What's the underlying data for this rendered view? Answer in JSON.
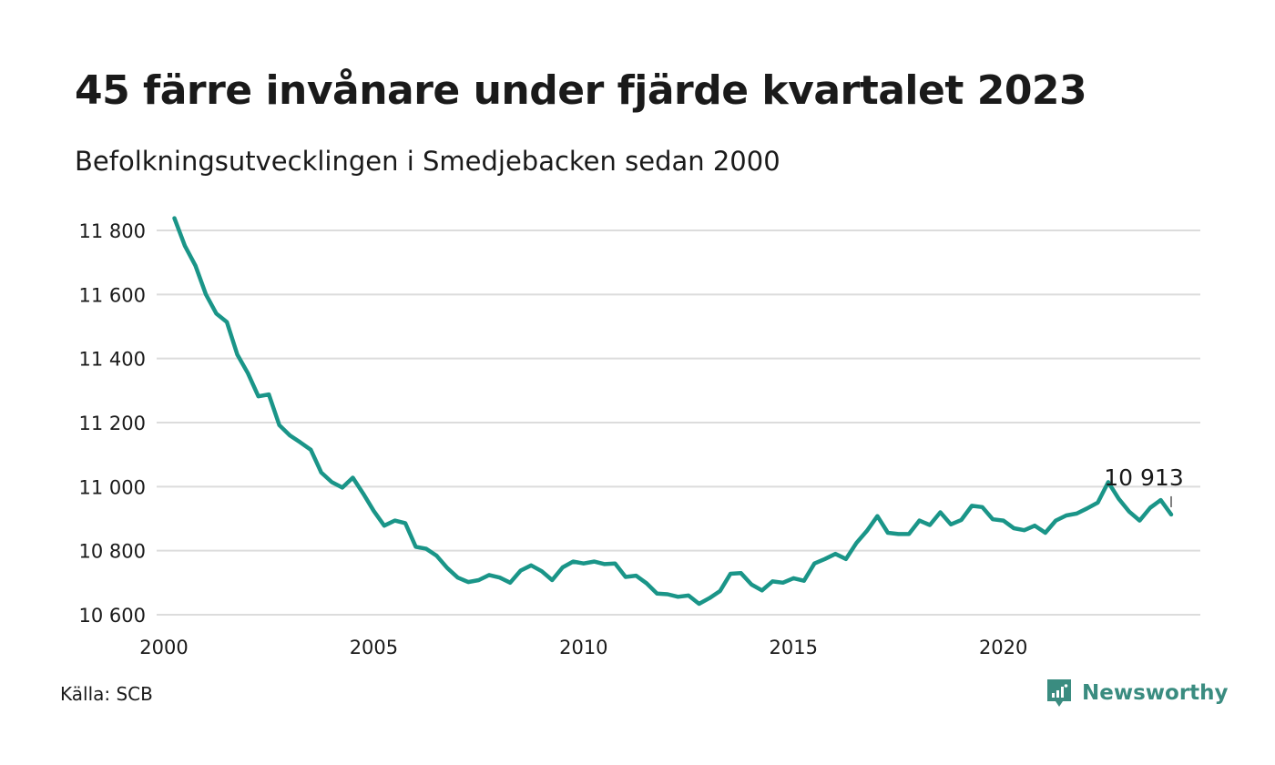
{
  "title": "45 färre invånare under fjärde kvartalet 2023",
  "subtitle": "Befolkningsutvecklingen i Smedjebacken sedan 2000",
  "source": "Källa: SCB",
  "brand": {
    "name": "Newsworthy",
    "color": "#3a8c80",
    "icon": "newsworthy-logo-icon"
  },
  "chart_data": {
    "type": "line",
    "title": "45 färre invånare under fjärde kvartalet 2023",
    "subtitle": "Befolkningsutvecklingen i Smedjebacken sedan 2000",
    "xlabel": "",
    "ylabel": "",
    "xlim": [
      2000,
      2024
    ],
    "ylim": [
      10600,
      11840
    ],
    "x_ticks": [
      2000,
      2005,
      2010,
      2015,
      2020
    ],
    "x_tick_labels": [
      "2000",
      "2005",
      "2010",
      "2015",
      "2020"
    ],
    "y_ticks": [
      10600,
      10800,
      11000,
      11200,
      11400,
      11600,
      11800
    ],
    "y_tick_labels": [
      "10 600",
      "10 800",
      "11 000",
      "11 200",
      "11 400",
      "11 600",
      "11 800"
    ],
    "grid": true,
    "line_color": "#1a9588",
    "end_label": "10 913",
    "series": [
      {
        "x": [
          2000.25,
          2000.5,
          2000.75,
          2001.0,
          2001.25,
          2001.5,
          2001.75,
          2002.0,
          2002.25,
          2002.5,
          2002.75,
          2003.0,
          2003.25,
          2003.5,
          2003.75,
          2004.0,
          2004.25,
          2004.5,
          2004.75,
          2005.0,
          2005.25,
          2005.5,
          2005.75,
          2006.0,
          2006.25,
          2006.5,
          2006.75,
          2007.0,
          2007.25,
          2007.5,
          2007.75,
          2008.0,
          2008.25,
          2008.5,
          2008.75,
          2009.0,
          2009.25,
          2009.5,
          2009.75,
          2010.0,
          2010.25,
          2010.5,
          2010.75,
          2011.0,
          2011.25,
          2011.5,
          2011.75,
          2012.0,
          2012.25,
          2012.5,
          2012.75,
          2013.0,
          2013.25,
          2013.5,
          2013.75,
          2014.0,
          2014.25,
          2014.5,
          2014.75,
          2015.0,
          2015.25,
          2015.5,
          2015.75,
          2016.0,
          2016.25,
          2016.5,
          2016.75,
          2017.0,
          2017.25,
          2017.5,
          2017.75,
          2018.0,
          2018.25,
          2018.5,
          2018.75,
          2019.0,
          2019.25,
          2019.5,
          2019.75,
          2020.0,
          2020.25,
          2020.5,
          2020.75,
          2021.0,
          2021.25,
          2021.5,
          2021.75,
          2022.0,
          2022.25,
          2022.5,
          2022.75,
          2023.0,
          2023.25,
          2023.5,
          2023.75,
          2024.0
        ],
        "values": [
          11838,
          11752,
          11690,
          11600,
          11540,
          11514,
          11412,
          11354,
          11282,
          11288,
          11192,
          11160,
          11138,
          11115,
          11044,
          11014,
          10997,
          11028,
          10978,
          10924,
          10878,
          10894,
          10886,
          10812,
          10806,
          10784,
          10746,
          10716,
          10702,
          10708,
          10724,
          10716,
          10700,
          10738,
          10754,
          10736,
          10708,
          10748,
          10766,
          10760,
          10766,
          10758,
          10760,
          10718,
          10722,
          10698,
          10666,
          10664,
          10656,
          10660,
          10634,
          10652,
          10674,
          10728,
          10730,
          10694,
          10676,
          10704,
          10700,
          10714,
          10706,
          10760,
          10774,
          10790,
          10774,
          10824,
          10862,
          10908,
          10856,
          10852,
          10852,
          10894,
          10880,
          10920,
          10882,
          10896,
          10940,
          10936,
          10898,
          10894,
          10870,
          10864,
          10878,
          10856,
          10894,
          10910,
          10916,
          10932,
          10950,
          11014,
          10962,
          10922,
          10894,
          10934,
          10958,
          10913
        ]
      }
    ]
  }
}
